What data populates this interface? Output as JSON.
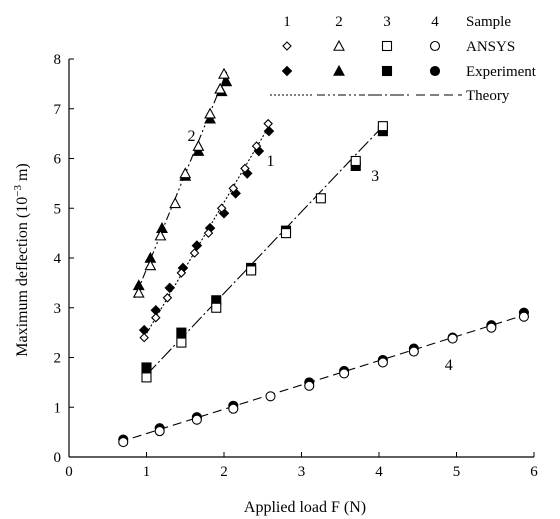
{
  "chart_data": {
    "type": "scatter",
    "xlabel": "Applied load  F (N)",
    "ylabel_prefix": "Maximum deflection (10",
    "ylabel_exp": "−3",
    "ylabel_suffix": " m)",
    "xlim": [
      0,
      6
    ],
    "ylim": [
      0,
      8
    ],
    "xticks": [
      "0",
      "1",
      "2",
      "3",
      "4",
      "5",
      "6"
    ],
    "yticks": [
      "0",
      "1",
      "2",
      "3",
      "4",
      "5",
      "6",
      "7",
      "8"
    ],
    "grid": false,
    "legend": {
      "placement": "top-right",
      "sample_header": "Sample",
      "sample_numbers": [
        "1",
        "2",
        "3",
        "4"
      ],
      "rows": [
        "ANSYS",
        "Experiment",
        "Theory"
      ]
    },
    "series": [
      {
        "sample": "1",
        "curve_label": "1",
        "label_at": [
          2.6,
          5.85
        ],
        "ansys": {
          "x": [
            0.97,
            1.12,
            1.27,
            1.45,
            1.62,
            1.8,
            1.97,
            2.12,
            2.27,
            2.42,
            2.57
          ],
          "y": [
            2.4,
            2.8,
            3.2,
            3.7,
            4.1,
            4.5,
            5.0,
            5.4,
            5.8,
            6.25,
            6.7
          ]
        },
        "experiment": {
          "x": [
            0.97,
            1.12,
            1.3,
            1.47,
            1.65,
            1.82,
            2.0,
            2.15,
            2.3,
            2.45,
            2.58
          ],
          "y": [
            2.55,
            2.95,
            3.4,
            3.8,
            4.25,
            4.6,
            4.9,
            5.3,
            5.7,
            6.15,
            6.55
          ]
        },
        "theory": {
          "x": [
            0.95,
            2.6
          ],
          "y": [
            2.35,
            6.7
          ]
        }
      },
      {
        "sample": "2",
        "curve_label": "2",
        "label_at": [
          1.58,
          6.35
        ],
        "ansys": {
          "x": [
            0.9,
            1.05,
            1.18,
            1.37,
            1.5,
            1.67,
            1.82,
            1.95,
            2.0
          ],
          "y": [
            3.3,
            3.85,
            4.45,
            5.1,
            5.7,
            6.25,
            6.9,
            7.4,
            7.7
          ]
        },
        "experiment": {
          "x": [
            0.9,
            1.05,
            1.2,
            1.5,
            1.67,
            1.82,
            1.97,
            2.03
          ],
          "y": [
            3.45,
            4.0,
            4.6,
            5.65,
            6.15,
            6.8,
            7.35,
            7.55
          ]
        },
        "theory": {
          "x": [
            0.85,
            2.05
          ],
          "y": [
            3.2,
            7.8
          ]
        }
      },
      {
        "sample": "3",
        "curve_label": "3",
        "label_at": [
          3.95,
          5.55
        ],
        "ansys": {
          "x": [
            1.0,
            1.45,
            1.9,
            2.35,
            2.8,
            3.25,
            3.7,
            4.05
          ],
          "y": [
            1.6,
            2.3,
            3.0,
            3.75,
            4.5,
            5.2,
            5.95,
            6.65
          ]
        },
        "experiment": {
          "x": [
            1.0,
            1.45,
            1.9,
            2.35,
            2.8,
            3.7,
            4.05
          ],
          "y": [
            1.8,
            2.5,
            3.15,
            3.8,
            4.55,
            5.85,
            6.55
          ]
        },
        "theory": {
          "x": [
            1.0,
            4.05
          ],
          "y": [
            1.65,
            6.65
          ]
        }
      },
      {
        "sample": "4",
        "curve_label": "4",
        "label_at": [
          4.9,
          1.75
        ],
        "ansys": {
          "x": [
            0.7,
            1.17,
            1.65,
            2.12,
            2.6,
            3.1,
            3.55,
            4.05,
            4.45,
            4.95,
            5.45,
            5.87
          ],
          "y": [
            0.3,
            0.52,
            0.75,
            0.97,
            1.22,
            1.43,
            1.68,
            1.9,
            2.12,
            2.38,
            2.6,
            2.82
          ]
        },
        "experiment": {
          "x": [
            0.7,
            1.17,
            1.65,
            2.12,
            3.1,
            3.55,
            4.05,
            4.45,
            4.95,
            5.45,
            5.87
          ],
          "y": [
            0.35,
            0.58,
            0.8,
            1.03,
            1.5,
            1.73,
            1.95,
            2.18,
            2.4,
            2.65,
            2.9
          ]
        },
        "theory": {
          "x": [
            0.65,
            5.87
          ],
          "y": [
            0.3,
            2.85
          ]
        }
      }
    ]
  }
}
